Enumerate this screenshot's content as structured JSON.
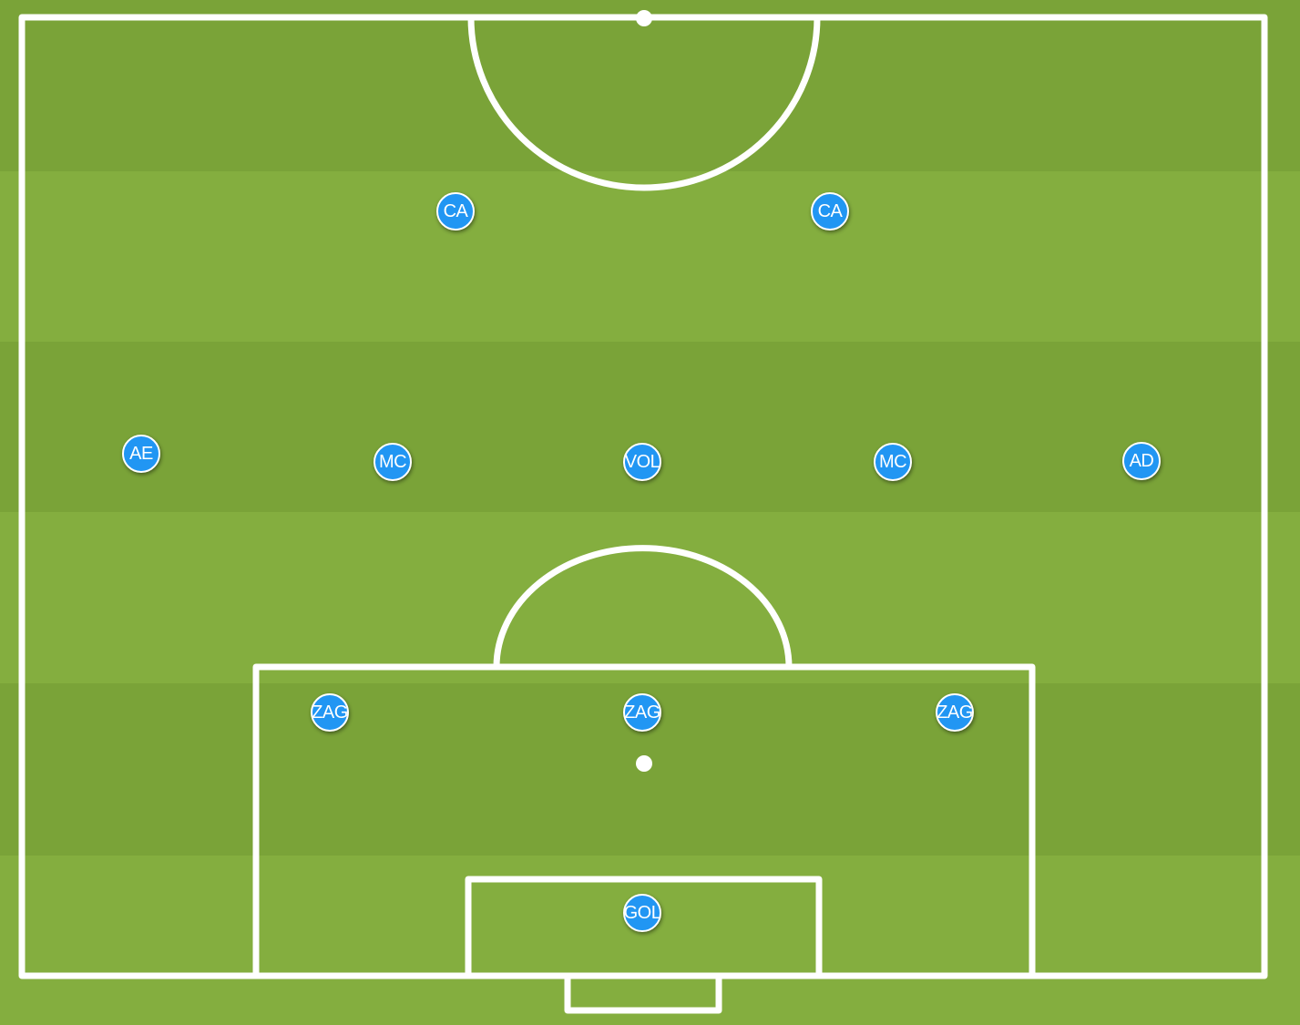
{
  "colors": {
    "grass_dark": "#7aa338",
    "grass_light": "#84ae3f",
    "line": "#ffffff",
    "player_fill": "#2196f3",
    "player_border": "#ffffff",
    "player_text": "#ffffff"
  },
  "players": [
    {
      "label": "CA"
    },
    {
      "label": "CA"
    },
    {
      "label": "AE"
    },
    {
      "label": "MC"
    },
    {
      "label": "VOL"
    },
    {
      "label": "MC"
    },
    {
      "label": "AD"
    },
    {
      "label": "ZAG"
    },
    {
      "label": "ZAG"
    },
    {
      "label": "ZAG"
    },
    {
      "label": "GOL"
    }
  ]
}
